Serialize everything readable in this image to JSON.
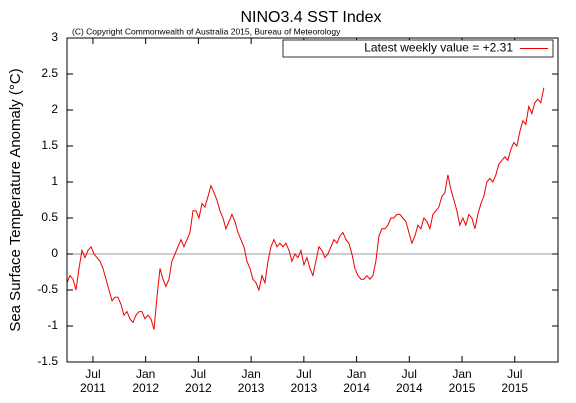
{
  "chart_data": {
    "type": "line",
    "title": "NINO3.4 SST Index",
    "subtitle": "(C) Copyright Commonwealth of Australia 2015, Bureau of Meteorology",
    "y_label": "Sea Surface Temperature Anomaly (°C)",
    "xlim": [
      2011.254,
      2015.91
    ],
    "ylim": [
      -1.5,
      3
    ],
    "yticks": [
      -1.5,
      -1,
      -0.5,
      0,
      0.5,
      1,
      1.5,
      2,
      2.5,
      3
    ],
    "xticks": [
      {
        "value": 2011.5,
        "label": [
          "Jul",
          "2011"
        ]
      },
      {
        "value": 2012.0,
        "label": [
          "Jan",
          "2012"
        ]
      },
      {
        "value": 2012.5,
        "label": [
          "Jul",
          "2012"
        ]
      },
      {
        "value": 2013.0,
        "label": [
          "Jan",
          "2013"
        ]
      },
      {
        "value": 2013.5,
        "label": [
          "Jul",
          "2013"
        ]
      },
      {
        "value": 2014.0,
        "label": [
          "Jan",
          "2014"
        ]
      },
      {
        "value": 2014.5,
        "label": [
          "Jul",
          "2014"
        ]
      },
      {
        "value": 2015.0,
        "label": [
          "Jan",
          "2015"
        ]
      },
      {
        "value": 2015.5,
        "label": [
          "Jul",
          "2015"
        ]
      }
    ],
    "legend": "upper right",
    "x": [
      2011.254,
      2011.282,
      2011.311,
      2011.339,
      2011.368,
      2011.396,
      2011.425,
      2011.453,
      2011.482,
      2011.51,
      2011.538,
      2011.567,
      2011.595,
      2011.624,
      2011.652,
      2011.681,
      2011.709,
      2011.737,
      2011.766,
      2011.794,
      2011.823,
      2011.851,
      2011.88,
      2011.908,
      2011.937,
      2011.965,
      2011.993,
      2012.022,
      2012.05,
      2012.079,
      2012.107,
      2012.136,
      2012.164,
      2012.192,
      2012.221,
      2012.249,
      2012.278,
      2012.306,
      2012.335,
      2012.363,
      2012.392,
      2012.42,
      2012.449,
      2012.477,
      2012.505,
      2012.534,
      2012.562,
      2012.591,
      2012.619,
      2012.648,
      2012.676,
      2012.704,
      2012.733,
      2012.761,
      2012.79,
      2012.818,
      2012.847,
      2012.875,
      2012.903,
      2012.932,
      2012.96,
      2012.989,
      2013.017,
      2013.046,
      2013.074,
      2013.103,
      2013.131,
      2013.16,
      2013.188,
      2013.216,
      2013.245,
      2013.273,
      2013.302,
      2013.33,
      2013.359,
      2013.387,
      2013.415,
      2013.444,
      2013.472,
      2013.501,
      2013.529,
      2013.558,
      2013.586,
      2013.614,
      2013.643,
      2013.671,
      2013.7,
      2013.728,
      2013.757,
      2013.785,
      2013.814,
      2013.842,
      2013.87,
      2013.899,
      2013.927,
      2013.956,
      2013.984,
      2014.013,
      2014.041,
      2014.069,
      2014.098,
      2014.126,
      2014.155,
      2014.183,
      2014.212,
      2014.24,
      2014.269,
      2014.297,
      2014.325,
      2014.354,
      2014.382,
      2014.411,
      2014.439,
      2014.468,
      2014.496,
      2014.524,
      2014.553,
      2014.581,
      2014.61,
      2014.638,
      2014.667,
      2014.695,
      2014.724,
      2014.752,
      2014.78,
      2014.809,
      2014.837,
      2014.866,
      2014.894,
      2014.923,
      2014.951,
      2014.979,
      2015.008,
      2015.036,
      2015.065,
      2015.093,
      2015.122,
      2015.15,
      2015.179,
      2015.207,
      2015.235,
      2015.264,
      2015.292,
      2015.321,
      2015.349,
      2015.378,
      2015.406,
      2015.434,
      2015.463,
      2015.491,
      2015.52,
      2015.548,
      2015.577,
      2015.605,
      2015.633,
      2015.662,
      2015.69,
      2015.719,
      2015.747,
      2015.776
    ],
    "series": [
      {
        "name": "Latest weekly value = +2.31",
        "color": "#ee0000",
        "values": [
          -0.4,
          -0.3,
          -0.35,
          -0.5,
          -0.2,
          0.05,
          -0.05,
          0.05,
          0.1,
          0,
          -0.05,
          -0.1,
          -0.2,
          -0.35,
          -0.5,
          -0.65,
          -0.6,
          -0.6,
          -0.7,
          -0.85,
          -0.8,
          -0.9,
          -0.95,
          -0.85,
          -0.8,
          -0.8,
          -0.9,
          -0.85,
          -0.9,
          -1.05,
          -0.6,
          -0.2,
          -0.35,
          -0.45,
          -0.35,
          -0.1,
          0,
          0.1,
          0.2,
          0.1,
          0.2,
          0.3,
          0.6,
          0.6,
          0.5,
          0.7,
          0.65,
          0.8,
          0.95,
          0.85,
          0.75,
          0.6,
          0.5,
          0.35,
          0.45,
          0.55,
          0.45,
          0.3,
          0.2,
          0.1,
          -0.1,
          -0.2,
          -0.35,
          -0.4,
          -0.5,
          -0.3,
          -0.4,
          -0.1,
          0.1,
          0.2,
          0.1,
          0.15,
          0.1,
          0.15,
          0.05,
          -0.1,
          0,
          -0.05,
          0.05,
          -0.15,
          -0.05,
          -0.2,
          -0.3,
          -0.1,
          0.1,
          0.05,
          -0.05,
          0,
          0.1,
          0.2,
          0.15,
          0.25,
          0.3,
          0.2,
          0.15,
          0,
          -0.2,
          -0.3,
          -0.35,
          -0.35,
          -0.3,
          -0.35,
          -0.3,
          -0.1,
          0.25,
          0.35,
          0.35,
          0.4,
          0.5,
          0.5,
          0.55,
          0.55,
          0.5,
          0.45,
          0.3,
          0.15,
          0.25,
          0.4,
          0.35,
          0.5,
          0.45,
          0.35,
          0.55,
          0.6,
          0.65,
          0.8,
          0.85,
          1.1,
          0.9,
          0.75,
          0.6,
          0.4,
          0.5,
          0.4,
          0.55,
          0.5,
          0.35,
          0.55,
          0.7,
          0.8,
          1.0,
          1.05,
          1.0,
          1.1,
          1.25,
          1.3,
          1.35,
          1.3,
          1.45,
          1.55,
          1.5,
          1.7,
          1.85,
          1.8,
          2.05,
          1.95,
          2.1,
          2.15,
          2.1,
          2.31
        ]
      }
    ]
  }
}
